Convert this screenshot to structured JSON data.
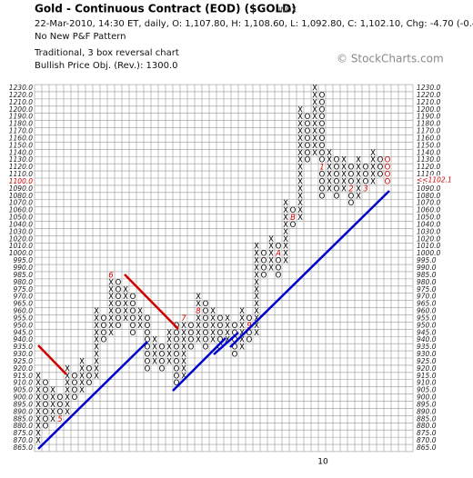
{
  "chart_data": {
    "type": "point-and-figure",
    "title": "Gold - Continuous Contract (EOD) ($GOLD)",
    "exchange": "INDX",
    "subtitle": "22-Mar-2010, 14:30 ET, daily, O: 1,107.80, H: 1,108.60, L: 1,092.80, C: 1,102.10, Chg: -4.70 (-0.42%)",
    "pattern": "No New P&F Pattern",
    "method": "Traditional, 3 box reversal chart",
    "objective": "Bullish Price Obj. (Rev.): 1300.0",
    "watermark": "© StockCharts.com",
    "x_label": "10",
    "current_box": 1100,
    "last_price": {
      "value": 1102.1,
      "label": "<<1102.1"
    },
    "yticks": [
      {
        "value": 865,
        "label": "865.0"
      },
      {
        "value": 870,
        "label": "870.0"
      },
      {
        "value": 875,
        "label": "875.0"
      },
      {
        "value": 880,
        "label": "880.0"
      },
      {
        "value": 885,
        "label": "885.0"
      },
      {
        "value": 890,
        "label": "890.0"
      },
      {
        "value": 895,
        "label": "895.0"
      },
      {
        "value": 900,
        "label": "900.0"
      },
      {
        "value": 905,
        "label": "905.0"
      },
      {
        "value": 910,
        "label": "910.0"
      },
      {
        "value": 915,
        "label": "915.0"
      },
      {
        "value": 920,
        "label": "920.0"
      },
      {
        "value": 925,
        "label": "925.0"
      },
      {
        "value": 930,
        "label": "930.0"
      },
      {
        "value": 935,
        "label": "935.0"
      },
      {
        "value": 940,
        "label": "940.0"
      },
      {
        "value": 945,
        "label": "945.0"
      },
      {
        "value": 950,
        "label": "950.0"
      },
      {
        "value": 955,
        "label": "955.0"
      },
      {
        "value": 960,
        "label": "960.0"
      },
      {
        "value": 965,
        "label": "965.0"
      },
      {
        "value": 970,
        "label": "970.0"
      },
      {
        "value": 975,
        "label": "975.0"
      },
      {
        "value": 980,
        "label": "980.0"
      },
      {
        "value": 985,
        "label": "985.0"
      },
      {
        "value": 990,
        "label": "990.0"
      },
      {
        "value": 995,
        "label": "995.0"
      },
      {
        "value": 1000,
        "label": "1000.0"
      },
      {
        "value": 1010,
        "label": "1010.0"
      },
      {
        "value": 1020,
        "label": "1020.0"
      },
      {
        "value": 1030,
        "label": "1030.0"
      },
      {
        "value": 1040,
        "label": "1040.0"
      },
      {
        "value": 1050,
        "label": "1050.0"
      },
      {
        "value": 1060,
        "label": "1060.0"
      },
      {
        "value": 1070,
        "label": "1070.0"
      },
      {
        "value": 1080,
        "label": "1080.0"
      },
      {
        "value": 1090,
        "label": "1090.0"
      },
      {
        "value": 1100,
        "label": "1100.0"
      },
      {
        "value": 1110,
        "label": "1110.0"
      },
      {
        "value": 1120,
        "label": "1120.0"
      },
      {
        "value": 1130,
        "label": "1130.0"
      },
      {
        "value": 1140,
        "label": "1140.0"
      },
      {
        "value": 1150,
        "label": "1150.0"
      },
      {
        "value": 1160,
        "label": "1160.0"
      },
      {
        "value": 1170,
        "label": "1170.0"
      },
      {
        "value": 1180,
        "label": "1180.0"
      },
      {
        "value": 1190,
        "label": "1190.0"
      },
      {
        "value": 1200,
        "label": "1200.0"
      },
      {
        "value": 1210,
        "label": "1210.0"
      },
      {
        "value": 1220,
        "label": "1220.0"
      },
      {
        "value": 1230,
        "label": "1230.0"
      }
    ],
    "columns": [
      {
        "kind": "X",
        "low": 870,
        "high": 915
      },
      {
        "kind": "O",
        "low": 880,
        "high": 910
      },
      {
        "kind": "X",
        "low": 885,
        "high": 905
      },
      {
        "kind": "O",
        "low": 885,
        "high": 900,
        "marks": [
          {
            "value": 885,
            "label": "5"
          }
        ]
      },
      {
        "kind": "X",
        "low": 890,
        "high": 920
      },
      {
        "kind": "O",
        "low": 900,
        "high": 915
      },
      {
        "kind": "X",
        "low": 905,
        "high": 925
      },
      {
        "kind": "O",
        "low": 910,
        "high": 920
      },
      {
        "kind": "X",
        "low": 915,
        "high": 960
      },
      {
        "kind": "O",
        "low": 940,
        "high": 955
      },
      {
        "kind": "X",
        "low": 945,
        "high": 985,
        "marks": [
          {
            "value": 985,
            "label": "6"
          }
        ]
      },
      {
        "kind": "O",
        "low": 950,
        "high": 980
      },
      {
        "kind": "X",
        "low": 955,
        "high": 975
      },
      {
        "kind": "O",
        "low": 945,
        "high": 970
      },
      {
        "kind": "X",
        "low": 950,
        "high": 960
      },
      {
        "kind": "O",
        "low": 920,
        "high": 955
      },
      {
        "kind": "X",
        "low": 925,
        "high": 940
      },
      {
        "kind": "O",
        "low": 920,
        "high": 935
      },
      {
        "kind": "X",
        "low": 925,
        "high": 945
      },
      {
        "kind": "O",
        "low": 910,
        "high": 950
      },
      {
        "kind": "X",
        "low": 915,
        "high": 955,
        "marks": [
          {
            "value": 955,
            "label": "7"
          }
        ]
      },
      {
        "kind": "O",
        "low": 935,
        "high": 950
      },
      {
        "kind": "X",
        "low": 940,
        "high": 970,
        "marks": [
          {
            "value": 960,
            "label": "8"
          }
        ]
      },
      {
        "kind": "O",
        "low": 935,
        "high": 965
      },
      {
        "kind": "X",
        "low": 940,
        "high": 960
      },
      {
        "kind": "O",
        "low": 935,
        "high": 955
      },
      {
        "kind": "X",
        "low": 940,
        "high": 955
      },
      {
        "kind": "O",
        "low": 930,
        "high": 950
      },
      {
        "kind": "X",
        "low": 935,
        "high": 960
      },
      {
        "kind": "O",
        "low": 940,
        "high": 955,
        "marks": [
          {
            "value": 950,
            "label": "9"
          }
        ]
      },
      {
        "kind": "X",
        "low": 945,
        "high": 1010
      },
      {
        "kind": "O",
        "low": 985,
        "high": 1000
      },
      {
        "kind": "X",
        "low": 990,
        "high": 1020
      },
      {
        "kind": "O",
        "low": 985,
        "high": 1010,
        "marks": [
          {
            "value": 1000,
            "label": "A"
          }
        ]
      },
      {
        "kind": "X",
        "low": 995,
        "high": 1070
      },
      {
        "kind": "O",
        "low": 1040,
        "high": 1060,
        "marks": [
          {
            "value": 1050,
            "label": "B"
          }
        ]
      },
      {
        "kind": "X",
        "low": 1050,
        "high": 1200
      },
      {
        "kind": "O",
        "low": 1130,
        "high": 1190
      },
      {
        "kind": "X",
        "low": 1140,
        "high": 1230
      },
      {
        "kind": "O",
        "low": 1080,
        "high": 1220,
        "marks": [
          {
            "value": 1120,
            "label": "1"
          }
        ]
      },
      {
        "kind": "X",
        "low": 1090,
        "high": 1140
      },
      {
        "kind": "O",
        "low": 1080,
        "high": 1130
      },
      {
        "kind": "X",
        "low": 1090,
        "high": 1130
      },
      {
        "kind": "O",
        "low": 1070,
        "high": 1120,
        "marks": [
          {
            "value": 1090,
            "label": "2"
          }
        ]
      },
      {
        "kind": "X",
        "low": 1080,
        "high": 1130
      },
      {
        "kind": "O",
        "low": 1090,
        "high": 1120,
        "marks": [
          {
            "value": 1090,
            "label": "3"
          }
        ]
      },
      {
        "kind": "X",
        "low": 1100,
        "high": 1140
      },
      {
        "kind": "O",
        "low": 1110,
        "high": 1130
      },
      {
        "kind": "O",
        "low": 1100,
        "high": 1130,
        "color": "#d00000"
      }
    ]
  }
}
